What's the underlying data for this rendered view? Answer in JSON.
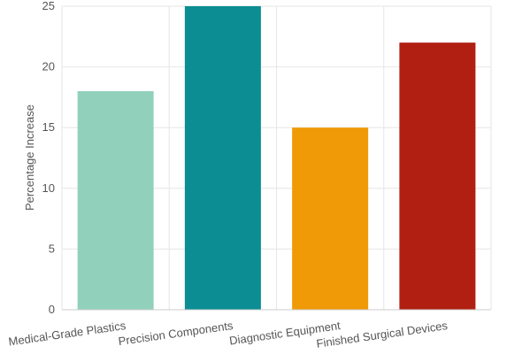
{
  "chart_data": {
    "type": "bar",
    "title": "",
    "xlabel": "",
    "ylabel": "Percentage Increase",
    "ylim": [
      0,
      25
    ],
    "yticks": [
      0,
      5,
      10,
      15,
      20,
      25
    ],
    "grid": true,
    "categories": [
      "Medical-Grade Plastics",
      "Precision Components",
      "Diagnostic Equipment",
      "Finished Surgical Devices"
    ],
    "values": [
      18,
      25,
      15,
      22
    ],
    "colors": [
      "#91d1bb",
      "#0b8d93",
      "#ef9a06",
      "#b01f12"
    ]
  }
}
